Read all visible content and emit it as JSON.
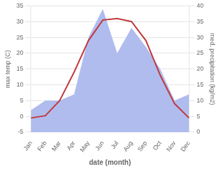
{
  "chart_data": {
    "type": "line",
    "xlabel": "date (month)",
    "ylabel": "max temp (C)",
    "y2label": "med. precipitation (kg/m2)",
    "categories": [
      "Jan",
      "Feb",
      "Mar",
      "Apr",
      "May",
      "Jun",
      "Jul",
      "Aug",
      "Sep",
      "Oct",
      "Nov",
      "Dec"
    ],
    "series": [
      {
        "type": "area",
        "color": "#b0bcee",
        "axis": "y2",
        "values": [
          7,
          10,
          10,
          12,
          30,
          39,
          25,
          33,
          27,
          20,
          10,
          12
        ]
      },
      {
        "type": "line",
        "color": "#c0393b",
        "values": [
          -0.5,
          0.2,
          5.0,
          14.0,
          24.0,
          30.5,
          31.0,
          30.0,
          24.0,
          13.0,
          4.0,
          -0.5
        ]
      }
    ],
    "ylim": [
      -5,
      35
    ],
    "yticks": [
      -5,
      0,
      5,
      10,
      15,
      20,
      25,
      30,
      35
    ],
    "y2lim": [
      0,
      40
    ],
    "y2ticks": [
      0,
      5,
      10,
      15,
      20,
      25,
      30,
      35,
      40
    ],
    "grid": true
  }
}
